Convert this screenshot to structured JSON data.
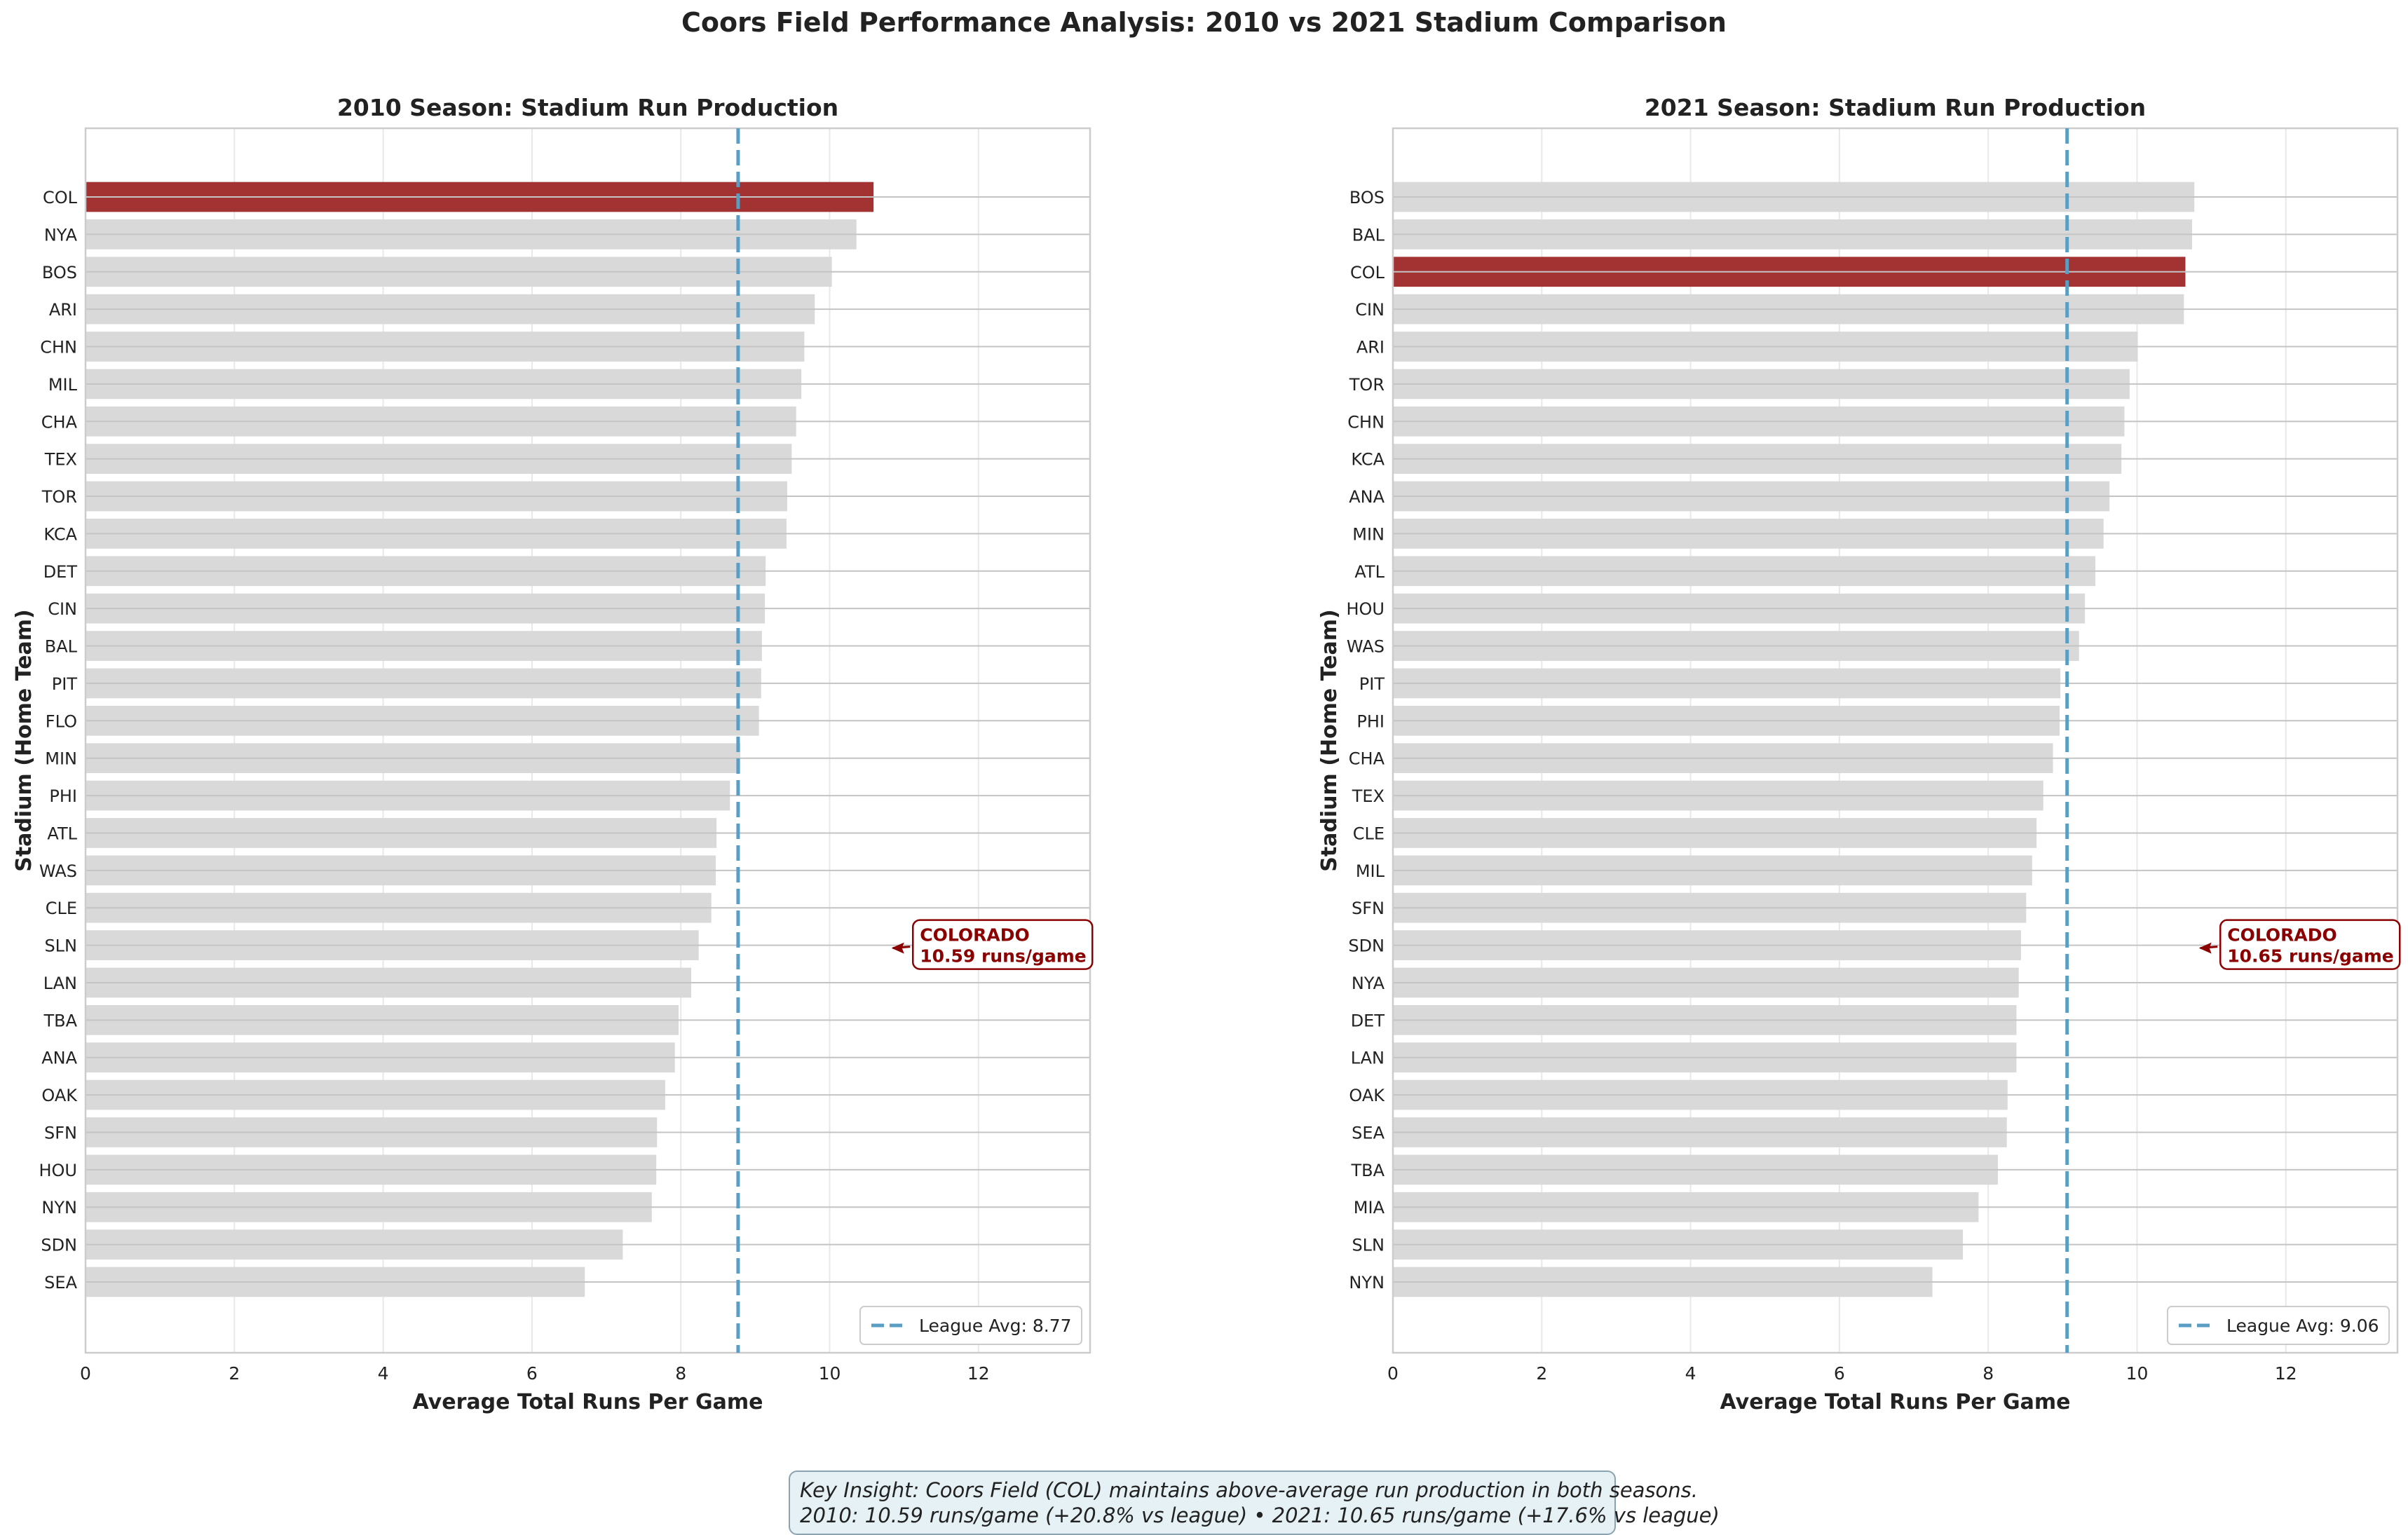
{
  "figure": {
    "title": "Coors Field Performance Analysis: 2010 vs 2021 Stadium Comparison",
    "insight_line1": "Key Insight: Coors Field (COL) maintains above-average run production in both seasons.",
    "insight_line2": "2010: 10.59 runs/game (+20.8% vs league) • 2021: 10.65 runs/game (+17.6% vs league)"
  },
  "colors": {
    "highlight": "#a33333",
    "bar": "#d9d9d9",
    "league_line": "#5a9ec4",
    "annotation": "#8b0000",
    "grid": "#e8e8e8",
    "spine": "#cccccc"
  },
  "chart_data": [
    {
      "type": "bar",
      "orientation": "horizontal",
      "title": "2010 Season: Stadium Run Production",
      "xlabel": "Average Total Runs Per Game",
      "ylabel": "Stadium (Home Team)",
      "xlim": [
        0,
        13.5
      ],
      "xticks": [
        0,
        2,
        4,
        6,
        8,
        10,
        12
      ],
      "grid": true,
      "highlight": "COL",
      "categories": [
        "COL",
        "NYA",
        "BOS",
        "ARI",
        "CHN",
        "MIL",
        "CHA",
        "TEX",
        "TOR",
        "KCA",
        "DET",
        "CIN",
        "BAL",
        "PIT",
        "FLO",
        "MIN",
        "PHI",
        "ATL",
        "WAS",
        "CLE",
        "SLN",
        "LAN",
        "TBA",
        "ANA",
        "OAK",
        "SFN",
        "HOU",
        "NYN",
        "SDN",
        "SEA"
      ],
      "values": [
        10.59,
        10.36,
        10.03,
        9.8,
        9.66,
        9.62,
        9.55,
        9.49,
        9.43,
        9.42,
        9.14,
        9.13,
        9.09,
        9.08,
        9.05,
        8.8,
        8.66,
        8.48,
        8.47,
        8.41,
        8.24,
        8.14,
        7.97,
        7.92,
        7.79,
        7.68,
        7.67,
        7.61,
        7.22,
        6.71
      ],
      "league_avg": 8.77,
      "legend": {
        "label": "League Avg: 8.77",
        "position": "lower-right"
      },
      "annotation": {
        "line1": "COLORADO",
        "line2": "10.59 runs/game",
        "target_category": "SLN",
        "x": 11.1
      }
    },
    {
      "type": "bar",
      "orientation": "horizontal",
      "title": "2021 Season: Stadium Run Production",
      "xlabel": "Average Total Runs Per Game",
      "ylabel": "Stadium (Home Team)",
      "xlim": [
        0,
        13.5
      ],
      "xticks": [
        0,
        2,
        4,
        6,
        8,
        10,
        12
      ],
      "grid": true,
      "highlight": "COL",
      "categories": [
        "BOS",
        "BAL",
        "COL",
        "CIN",
        "ARI",
        "TOR",
        "CHN",
        "KCA",
        "ANA",
        "MIN",
        "ATL",
        "HOU",
        "WAS",
        "PIT",
        "PHI",
        "CHA",
        "TEX",
        "CLE",
        "MIL",
        "SFN",
        "SDN",
        "NYA",
        "DET",
        "LAN",
        "OAK",
        "SEA",
        "TBA",
        "MIA",
        "SLN",
        "NYN"
      ],
      "values": [
        10.77,
        10.74,
        10.65,
        10.63,
        10.01,
        9.9,
        9.83,
        9.79,
        9.63,
        9.55,
        9.44,
        9.3,
        9.22,
        8.97,
        8.96,
        8.87,
        8.74,
        8.65,
        8.59,
        8.51,
        8.44,
        8.41,
        8.38,
        8.38,
        8.26,
        8.25,
        8.13,
        7.87,
        7.66,
        7.25
      ],
      "league_avg": 9.06,
      "legend": {
        "label": "League Avg: 9.06",
        "position": "lower-right"
      },
      "annotation": {
        "line1": "COLORADO",
        "line2": "10.65 runs/game",
        "target_category": "SDN",
        "x": 11.1
      }
    }
  ]
}
